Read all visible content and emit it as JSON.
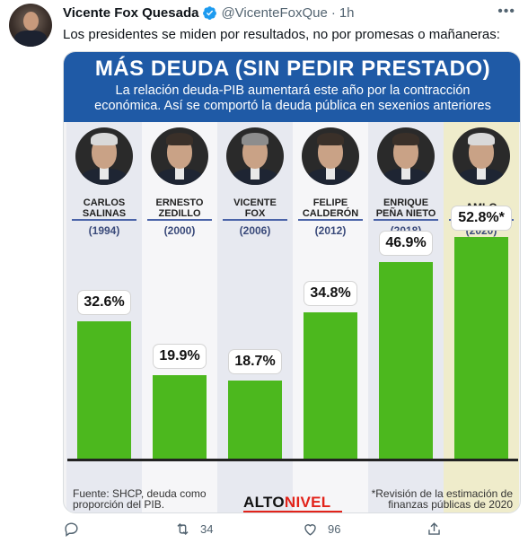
{
  "tweet": {
    "author_name": "Vicente Fox Quesada",
    "handle": "@VicenteFoxQue",
    "separator": "·",
    "time": "1h",
    "text": "Los presidentes se miden por resultados, no por promesas o mañaneras:",
    "more_icon": "more-dots-icon"
  },
  "infographic": {
    "title": "MÁS DEUDA (SIN PEDIR PRESTADO)",
    "subtitle_line1": "La relación deuda-PIB aumentará este año por la contracción",
    "subtitle_line2": "económica. Así se comportó la deuda pública en sexenios anteriores",
    "source_line1": "Fuente: SHCP, deuda como",
    "source_line2": "proporción del PIB.",
    "brand_part1": "ALTO",
    "brand_part2": "NIVEL",
    "note_line1": "*Revisión de la estimación de",
    "note_line2": "finanzas públicas de 2020",
    "colors": {
      "banner": "#1f5aa6",
      "bar": "#4cb81e",
      "highlight": "#efeccb",
      "brand_red": "#e2231a"
    }
  },
  "chart_data": {
    "type": "bar",
    "categories": [
      "CARLOS SALINAS",
      "ERNESTO ZEDILLO",
      "VICENTE FOX",
      "FELIPE CALDERÓN",
      "ENRIQUE PEÑA NIETO",
      "AMLO"
    ],
    "category_lines": [
      [
        "CARLOS",
        "SALINAS"
      ],
      [
        "ERNESTO",
        "ZEDILLO"
      ],
      [
        "VICENTE",
        "FOX"
      ],
      [
        "FELIPE",
        "CALDERÓN"
      ],
      [
        "ENRIQUE",
        "PEÑA NIETO"
      ],
      [
        "AMLO",
        ""
      ]
    ],
    "years": [
      "(1994)",
      "(2000)",
      "(2006)",
      "(2012)",
      "(2018)",
      "(2020)"
    ],
    "values": [
      32.6,
      19.9,
      18.7,
      34.8,
      46.9,
      52.8
    ],
    "value_labels": [
      "32.6%",
      "19.9%",
      "18.7%",
      "34.8%",
      "46.9%",
      "52.8%*"
    ],
    "ylim": [
      0,
      60
    ],
    "title": "MÁS DEUDA (SIN PEDIR PRESTADO)",
    "grid": false
  },
  "actions": {
    "retweet_count": "34",
    "like_count": "96",
    "icons": [
      "reply-icon",
      "retweet-icon",
      "like-icon",
      "share-icon"
    ]
  }
}
